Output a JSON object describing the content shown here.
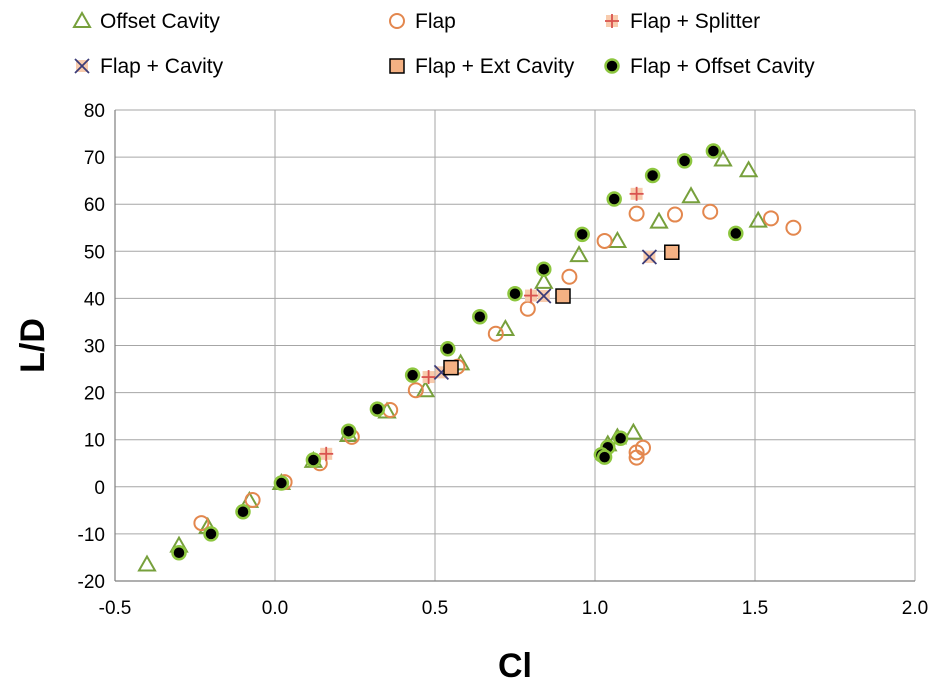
{
  "chart_data": {
    "type": "scatter",
    "xlabel": "Cl",
    "ylabel": "L/D",
    "xlim": [
      -0.5,
      2.0
    ],
    "ylim": [
      -20,
      80
    ],
    "x_ticks": [
      "-0.5",
      "0.0",
      "0.5",
      "1.0",
      "1.5",
      "2.0"
    ],
    "y_ticks": [
      "-20",
      "-10",
      "0",
      "10",
      "20",
      "30",
      "40",
      "50",
      "60",
      "70",
      "80"
    ],
    "grid": true,
    "legend_position": "top",
    "series": [
      {
        "name": "Offset Cavity",
        "marker": "triangle-open",
        "color": "#77a03c",
        "points": [
          [
            -0.4,
            -16.5
          ],
          [
            -0.3,
            -12.5
          ],
          [
            -0.21,
            -8.5
          ],
          [
            -0.08,
            -3.0
          ],
          [
            0.02,
            0.8
          ],
          [
            0.12,
            5.5
          ],
          [
            0.23,
            11.0
          ],
          [
            0.35,
            16.0
          ],
          [
            0.47,
            20.5
          ],
          [
            0.58,
            26.2
          ],
          [
            0.72,
            33.5
          ],
          [
            0.84,
            43.5
          ],
          [
            0.95,
            49.2
          ],
          [
            1.07,
            52.2
          ],
          [
            1.2,
            56.3
          ],
          [
            1.3,
            61.7
          ],
          [
            1.4,
            69.5
          ],
          [
            1.48,
            67.2
          ],
          [
            1.51,
            56.5
          ],
          [
            1.12,
            11.5
          ],
          [
            1.07,
            10.5
          ],
          [
            1.04,
            9.0
          ]
        ]
      },
      {
        "name": "Flap",
        "marker": "circle-open",
        "color": "#e3874e",
        "points": [
          [
            -0.23,
            -7.7
          ],
          [
            -0.07,
            -2.8
          ],
          [
            0.03,
            1.0
          ],
          [
            0.14,
            5.0
          ],
          [
            0.24,
            10.6
          ],
          [
            0.36,
            16.3
          ],
          [
            0.44,
            20.5
          ],
          [
            0.57,
            25.5
          ],
          [
            0.69,
            32.5
          ],
          [
            0.79,
            37.8
          ],
          [
            0.92,
            44.6
          ],
          [
            1.03,
            52.2
          ],
          [
            1.13,
            58.0
          ],
          [
            1.25,
            57.8
          ],
          [
            1.36,
            58.4
          ],
          [
            1.55,
            57.0
          ],
          [
            1.62,
            55.0
          ],
          [
            1.15,
            8.3
          ],
          [
            1.13,
            6.2
          ],
          [
            1.13,
            7.3
          ]
        ]
      },
      {
        "name": "Flap + Splitter",
        "marker": "plus-square",
        "color": "#f4b183",
        "points": [
          [
            0.16,
            7.0
          ],
          [
            0.48,
            23.3
          ],
          [
            0.8,
            40.6
          ],
          [
            1.13,
            62.2
          ]
        ]
      },
      {
        "name": "Flap + Cavity",
        "marker": "x-square",
        "color": "#f4b183",
        "points": [
          [
            0.52,
            24.3
          ],
          [
            0.84,
            40.5
          ],
          [
            1.17,
            48.8
          ]
        ]
      },
      {
        "name": "Flap + Ext Cavity",
        "marker": "square",
        "color": "#f4b183",
        "points": [
          [
            0.55,
            25.3
          ],
          [
            0.9,
            40.5
          ],
          [
            1.24,
            49.8
          ]
        ]
      },
      {
        "name": "Flap + Offset Cavity",
        "marker": "circle-filled",
        "color": "#000000",
        "points": [
          [
            -0.3,
            -14.0
          ],
          [
            -0.2,
            -10.0
          ],
          [
            -0.1,
            -5.3
          ],
          [
            0.02,
            0.8
          ],
          [
            0.12,
            5.7
          ],
          [
            0.23,
            11.8
          ],
          [
            0.32,
            16.5
          ],
          [
            0.43,
            23.7
          ],
          [
            0.54,
            29.3
          ],
          [
            0.64,
            36.1
          ],
          [
            0.75,
            41.0
          ],
          [
            0.84,
            46.2
          ],
          [
            0.96,
            53.6
          ],
          [
            1.06,
            61.1
          ],
          [
            1.18,
            66.1
          ],
          [
            1.28,
            69.2
          ],
          [
            1.37,
            71.3
          ],
          [
            1.44,
            53.8
          ],
          [
            1.08,
            10.3
          ],
          [
            1.04,
            8.4
          ],
          [
            1.02,
            6.8
          ],
          [
            1.03,
            6.3
          ]
        ]
      }
    ]
  }
}
